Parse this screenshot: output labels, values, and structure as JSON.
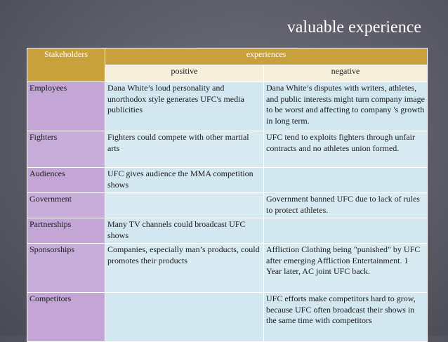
{
  "slide": {
    "title": "valuable experience"
  },
  "table": {
    "header": {
      "stakeholders": "Stakeholders",
      "experiences": "experiences",
      "positive": "positive",
      "negative": "negative"
    },
    "rows": [
      {
        "stakeholder": "Employees",
        "positive": "Dana White’s  loud personality and unorthodox style generates UFC's media publicities",
        "negative": "Dana White’s disputes with writers, athletes, and public interests might turn company image to be worst and affecting to company 's growth in long term."
      },
      {
        "stakeholder": "Fighters",
        "positive": "Fighters could compete with other martial arts",
        "negative": "UFC tend to exploits fighters through unfair contracts and no athletes union formed."
      },
      {
        "stakeholder": "Audiences",
        "positive": "UFC gives audience the MMA competition shows",
        "negative": ""
      },
      {
        "stakeholder": "Government",
        "positive": "",
        "negative": "Government banned UFC due to lack of rules to protect athletes."
      },
      {
        "stakeholder": "Partnerships",
        "positive": "Many TV channels could broadcast UFC shows",
        "negative": ""
      },
      {
        "stakeholder": "Sponsorships",
        "positive": "Companies, especially man’s products, could promotes their products",
        "negative": "Affliction Clothing being \"punished\" by UFC after emerging Affliction Entertainment. 1 Year later, AC joint UFC back."
      },
      {
        "stakeholder": "Competitors",
        "positive": "",
        "negative": "UFC efforts make competitors hard to grow, because UFC often broadcast their shows in the same time with competitors"
      }
    ]
  }
}
